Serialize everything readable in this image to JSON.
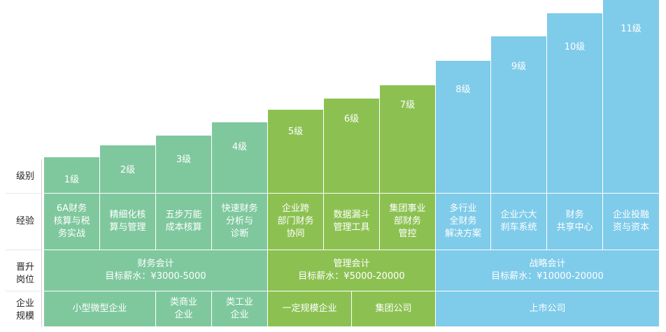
{
  "row_labels": {
    "level": "级别",
    "experience": "经验",
    "position": "晋升\n岗位",
    "company": "企业\n规模"
  },
  "levels": [
    {
      "label": "1级",
      "experience": "6A财务\n核算与税\n务实战"
    },
    {
      "label": "2级",
      "experience": "精细化核\n算与管理"
    },
    {
      "label": "3级",
      "experience": "五步万能\n成本核算"
    },
    {
      "label": "4级",
      "experience": "快速财务\n分析与\n诊断"
    },
    {
      "label": "5级",
      "experience": "企业跨\n部门财务\n协同"
    },
    {
      "label": "6级",
      "experience": "数据漏斗\n管理工具"
    },
    {
      "label": "7级",
      "experience": "集团事业\n部财务\n管控"
    },
    {
      "label": "8级",
      "experience": "多行业\n全财务\n解决方案"
    },
    {
      "label": "9级",
      "experience": "企业六大\n刹车系统"
    },
    {
      "label": "10级",
      "experience": "财务\n共享中心"
    },
    {
      "label": "11级",
      "experience": "企业投融\n资与资本"
    }
  ],
  "positions": [
    {
      "title": "财务会计",
      "salary": "目标薪水：¥3000-5000"
    },
    {
      "title": "管理会计",
      "salary": "目标薪水：¥5000-20000"
    },
    {
      "title": "战略会计",
      "salary": "目标薪水：¥10000-20000"
    }
  ],
  "company_sizes": [
    {
      "label": "小型微型企业"
    },
    {
      "label": "类商业\n企业"
    },
    {
      "label": "类工业\n企业"
    },
    {
      "label": "一定规模企业"
    },
    {
      "label": "集团公司"
    },
    {
      "label": "上市公司"
    }
  ],
  "colors": {
    "green_light": "#7fc89e",
    "green": "#8cc152",
    "blue": "#7fcbea"
  }
}
